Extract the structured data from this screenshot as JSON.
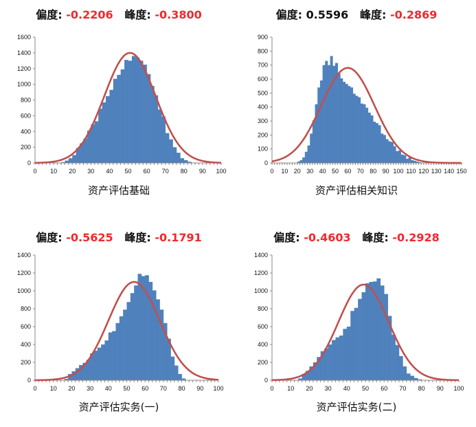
{
  "labels": {
    "skew": "偏度:",
    "kurt": "峰度:"
  },
  "colors": {
    "bar": "#4f81bd",
    "curve": "#c0504d",
    "negative_value": "#f0282d",
    "text": "#111111"
  },
  "chart_data": [
    {
      "type": "bar",
      "title_skew": "-0.2206",
      "title_kurt": "-0.3800",
      "skew_negative": true,
      "kurt_negative": true,
      "xlabel": "资产评估基础",
      "xlim": [
        0,
        100
      ],
      "xticks": [
        0,
        10,
        20,
        30,
        40,
        50,
        60,
        70,
        80,
        90,
        100
      ],
      "ylim": [
        0,
        1600
      ],
      "yticks": [
        0,
        200,
        400,
        600,
        800,
        1000,
        1200,
        1400,
        1600
      ],
      "bin_width": 2,
      "bin_starts": [
        14,
        16,
        18,
        20,
        22,
        24,
        26,
        28,
        30,
        32,
        34,
        36,
        38,
        40,
        42,
        44,
        46,
        48,
        50,
        52,
        54,
        56,
        58,
        60,
        62,
        64,
        66,
        68,
        70,
        72,
        74,
        76,
        78,
        80,
        82,
        84
      ],
      "values": [
        10,
        30,
        60,
        100,
        190,
        250,
        310,
        410,
        490,
        530,
        690,
        770,
        850,
        930,
        1070,
        1120,
        1190,
        1310,
        1300,
        1360,
        1340,
        1300,
        1250,
        1130,
        980,
        860,
        680,
        590,
        380,
        300,
        200,
        130,
        60,
        35,
        15,
        5
      ],
      "normal_fit": {
        "mean": 51,
        "sd": 13.8,
        "peak": 1400
      }
    },
    {
      "type": "bar",
      "title_skew": "0.5596",
      "title_kurt": "-0.2869",
      "skew_negative": false,
      "kurt_negative": true,
      "xlabel": "资产评估相关知识",
      "xlim": [
        0,
        150
      ],
      "xticks": [
        0,
        10,
        20,
        30,
        40,
        50,
        60,
        70,
        80,
        90,
        100,
        110,
        120,
        130,
        140,
        150
      ],
      "ylim": [
        0,
        900
      ],
      "yticks": [
        0,
        100,
        200,
        300,
        400,
        500,
        600,
        700,
        800,
        900
      ],
      "bin_width": 2,
      "bin_starts": [
        20,
        22,
        24,
        26,
        28,
        30,
        32,
        34,
        36,
        38,
        40,
        42,
        44,
        46,
        48,
        50,
        52,
        54,
        56,
        58,
        60,
        62,
        64,
        66,
        68,
        70,
        72,
        74,
        76,
        78,
        80,
        82,
        84,
        86,
        88,
        90,
        92,
        94,
        96,
        98,
        100,
        102,
        104,
        106,
        108,
        110,
        112,
        114,
        116
      ],
      "values": [
        10,
        20,
        40,
        80,
        125,
        210,
        305,
        420,
        540,
        590,
        700,
        730,
        700,
        765,
        695,
        715,
        640,
        605,
        580,
        565,
        550,
        540,
        495,
        480,
        470,
        425,
        420,
        395,
        360,
        340,
        295,
        285,
        270,
        210,
        200,
        170,
        155,
        150,
        120,
        85,
        90,
        60,
        55,
        30,
        40,
        20,
        15,
        10,
        5
      ],
      "normal_fit": {
        "mean": 60,
        "sd": 21,
        "peak": 680
      }
    },
    {
      "type": "bar",
      "title_skew": "-0.5625",
      "title_kurt": "-0.1791",
      "skew_negative": true,
      "kurt_negative": true,
      "xlabel": "资产评估实务(一)",
      "xlim": [
        0,
        100
      ],
      "xticks": [
        0,
        10,
        20,
        30,
        40,
        50,
        60,
        70,
        80,
        90,
        100
      ],
      "ylim": [
        0,
        1400
      ],
      "yticks": [
        0,
        200,
        400,
        600,
        800,
        1000,
        1200,
        1400
      ],
      "bin_width": 2,
      "bin_starts": [
        16,
        18,
        20,
        22,
        24,
        26,
        28,
        30,
        32,
        34,
        36,
        38,
        40,
        42,
        44,
        46,
        48,
        50,
        52,
        54,
        56,
        58,
        60,
        62,
        64,
        66,
        68,
        70,
        72,
        74,
        76,
        78,
        80
      ],
      "values": [
        15,
        70,
        100,
        135,
        170,
        195,
        230,
        300,
        330,
        365,
        400,
        445,
        535,
        550,
        640,
        715,
        790,
        875,
        975,
        1060,
        1190,
        1165,
        1175,
        1100,
        1005,
        905,
        790,
        640,
        465,
        265,
        165,
        70,
        20
      ],
      "normal_fit": {
        "mean": 54,
        "sd": 14,
        "peak": 1100
      }
    },
    {
      "type": "bar",
      "title_skew": "-0.4603",
      "title_kurt": "-0.2928",
      "skew_negative": true,
      "kurt_negative": true,
      "xlabel": "资产评估实务(二)",
      "xlim": [
        0,
        100
      ],
      "xticks": [
        0,
        10,
        20,
        30,
        40,
        50,
        60,
        70,
        80,
        90,
        100
      ],
      "ylim": [
        0,
        1400
      ],
      "yticks": [
        0,
        200,
        400,
        600,
        800,
        1000,
        1200,
        1400
      ],
      "bin_width": 2,
      "bin_starts": [
        14,
        16,
        18,
        20,
        22,
        24,
        26,
        28,
        30,
        32,
        34,
        36,
        38,
        40,
        42,
        44,
        46,
        48,
        50,
        52,
        54,
        56,
        58,
        60,
        62,
        64,
        66,
        68,
        70,
        72,
        74,
        76,
        78
      ],
      "values": [
        20,
        70,
        105,
        155,
        200,
        260,
        325,
        355,
        400,
        450,
        480,
        500,
        575,
        600,
        775,
        810,
        910,
        985,
        1085,
        1100,
        1105,
        1140,
        1060,
        965,
        720,
        510,
        395,
        270,
        155,
        75,
        50,
        25,
        10
      ],
      "normal_fit": {
        "mean": 49,
        "sd": 13.5,
        "peak": 1070
      }
    }
  ]
}
